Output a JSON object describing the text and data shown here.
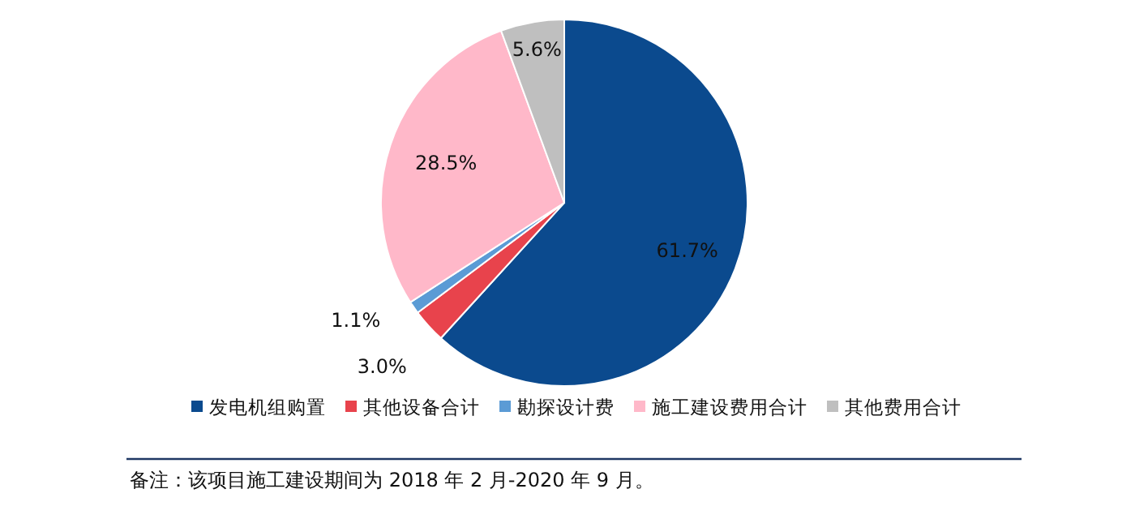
{
  "chart_data": {
    "type": "pie",
    "categories": [
      "发电机组购置",
      "其他设备合计",
      "勘探设计费",
      "施工建设费用合计",
      "其他费用合计"
    ],
    "values": [
      61.7,
      3.0,
      1.1,
      28.5,
      5.6
    ],
    "colors": [
      "#0b4a8e",
      "#e8434c",
      "#5b9bd5",
      "#ffb8c9",
      "#bfbfbf"
    ],
    "value_labels": [
      "61.7%",
      "3.0%",
      "1.1%",
      "28.5%",
      "5.6%"
    ],
    "legend": "bottom",
    "annotations": [
      "备注：该项目施工建设期间为 2018 年 2 月-2020 年 9 月。"
    ]
  }
}
